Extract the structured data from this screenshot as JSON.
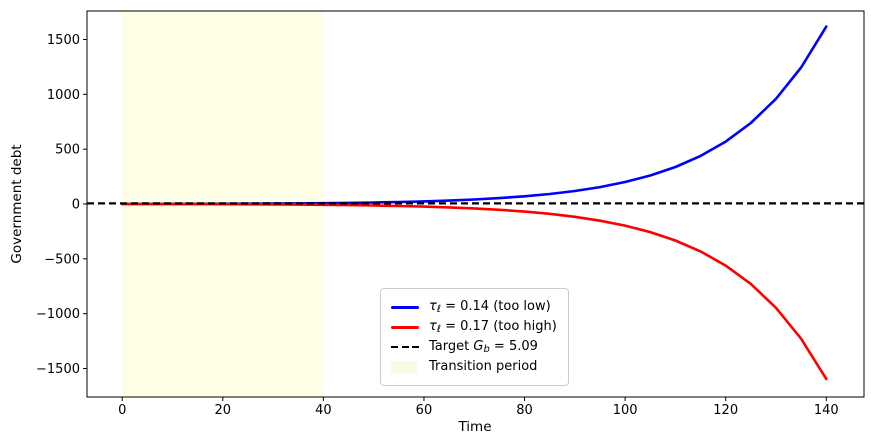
{
  "chart_data": {
    "type": "line",
    "title": "",
    "xlabel": "Time",
    "ylabel": "Government debt",
    "xlim": [
      -7,
      147.5
    ],
    "ylim": [
      -1760,
      1760
    ],
    "x_ticks": [
      0,
      20,
      40,
      60,
      80,
      100,
      120,
      140
    ],
    "y_ticks": [
      -1500,
      -1000,
      -500,
      0,
      500,
      1000,
      1500
    ],
    "grid": false,
    "legend_position": "lower center inside axes",
    "x": [
      0,
      5,
      10,
      15,
      20,
      25,
      30,
      35,
      40,
      45,
      50,
      55,
      60,
      65,
      70,
      75,
      80,
      85,
      90,
      95,
      100,
      105,
      110,
      115,
      120,
      125,
      130,
      135,
      140
    ],
    "series": [
      {
        "name": "tau_l = 0.14 (too low)",
        "kind": "line",
        "color": "#0000ff",
        "linewidth": 2.6,
        "values": [
          0,
          0.3,
          0.8,
          1.3,
          2.0,
          2.9,
          4.1,
          5.7,
          7.7,
          10.4,
          13.8,
          18.2,
          24.0,
          31.4,
          41.1,
          53.6,
          69.9,
          91.0,
          118.4,
          154.0,
          200.2,
          260.0,
          337.7,
          438.6,
          569.4,
          739.1,
          959.3,
          1245.1,
          1617.4
        ]
      },
      {
        "name": "tau_l = 0.17 (too high)",
        "kind": "line",
        "color": "#ff0000",
        "linewidth": 2.6,
        "values": [
          0,
          -0.3,
          -0.7,
          -1.3,
          -2.0,
          -2.9,
          -4.1,
          -5.6,
          -7.6,
          -10.2,
          -13.6,
          -18.0,
          -23.6,
          -31.0,
          -40.5,
          -52.9,
          -69.0,
          -89.8,
          -116.8,
          -151.9,
          -197.4,
          -256.5,
          -333.1,
          -432.6,
          -561.6,
          -729.0,
          -946.2,
          -1228.1,
          -1595.3
        ]
      },
      {
        "name": "Target G_b = 5.09",
        "kind": "hline",
        "color": "#000000",
        "linewidth": 2.2,
        "dash": "7 4",
        "value": 5.09
      },
      {
        "name": "Transition period",
        "kind": "vspan",
        "color": "#ffffe0",
        "opacity": 0.75,
        "from": 0,
        "to": 40
      }
    ]
  },
  "legend": {
    "items": [
      {
        "marker": "line",
        "color": "#0000ff",
        "pre": "",
        "italic": "τ",
        "sub": "ℓ",
        "post": " = 0.14 (too low)"
      },
      {
        "marker": "line",
        "color": "#ff0000",
        "pre": "",
        "italic": "τ",
        "sub": "ℓ",
        "post": " = 0.17 (too high)"
      },
      {
        "marker": "dashes",
        "color": "#000000",
        "pre": "Target ",
        "italic": "G",
        "sub": "b",
        "post": " = 5.09"
      },
      {
        "marker": "patch",
        "color": "#fbfae2",
        "pre": "Transition period",
        "italic": "",
        "sub": "",
        "post": ""
      }
    ]
  }
}
